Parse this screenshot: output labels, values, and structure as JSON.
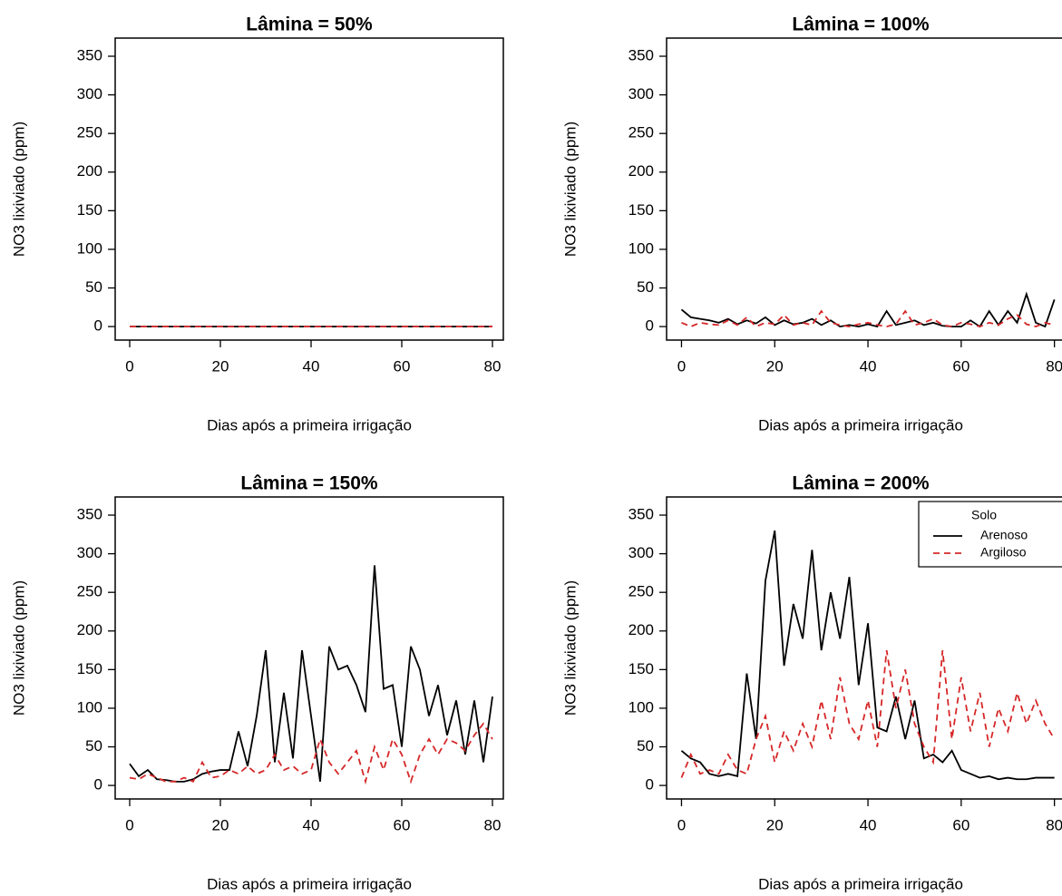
{
  "chart_data": [
    {
      "type": "line",
      "title": "Lâmina = 50%",
      "xlabel": "Dias após a primeira irrigação",
      "ylabel": "NO3 lixiviado (ppm)",
      "x": [
        0,
        2,
        4,
        6,
        8,
        10,
        12,
        14,
        16,
        18,
        20,
        22,
        24,
        26,
        28,
        30,
        32,
        34,
        36,
        38,
        40,
        42,
        44,
        46,
        48,
        50,
        52,
        54,
        56,
        58,
        60,
        62,
        64,
        66,
        68,
        70,
        72,
        74,
        76,
        78,
        80
      ],
      "xlim": [
        -3.2,
        82.4
      ],
      "xticks": [
        0,
        20,
        40,
        60,
        80
      ],
      "ylim": [
        -17.5,
        373.5
      ],
      "yticks": [
        0,
        50,
        100,
        150,
        200,
        250,
        300,
        350
      ],
      "series": [
        {
          "color": "#000000",
          "linestyle": "solid",
          "values": [
            0,
            0,
            0,
            0,
            0,
            0,
            0,
            0,
            0,
            0,
            0,
            0,
            0,
            0,
            0,
            0,
            0,
            0,
            0,
            0,
            0,
            0,
            0,
            0,
            0,
            0,
            0,
            0,
            0,
            0,
            0,
            0,
            0,
            0,
            0,
            0,
            0,
            0,
            0,
            0,
            0
          ]
        },
        {
          "color": "#d62728",
          "linestyle": "dashed",
          "values": [
            0,
            0,
            0,
            0,
            0,
            0,
            0,
            0,
            0,
            0,
            0,
            0,
            0,
            0,
            0,
            0,
            0,
            0,
            0,
            0,
            0,
            0,
            0,
            0,
            0,
            0,
            0,
            0,
            0,
            0,
            0,
            0,
            0,
            0,
            0,
            0,
            0,
            0,
            0,
            0,
            0
          ]
        }
      ]
    },
    {
      "type": "line",
      "title": "Lâmina = 100%",
      "xlabel": "Dias após a primeira irrigação",
      "ylabel": "NO3 lixiviado (ppm)",
      "x": [
        0,
        2,
        4,
        6,
        8,
        10,
        12,
        14,
        16,
        18,
        20,
        22,
        24,
        26,
        28,
        30,
        32,
        34,
        36,
        38,
        40,
        42,
        44,
        46,
        48,
        50,
        52,
        54,
        56,
        58,
        60,
        62,
        64,
        66,
        68,
        70,
        72,
        74,
        76,
        78,
        80
      ],
      "xlim": [
        -3.2,
        82.4
      ],
      "xticks": [
        0,
        20,
        40,
        60,
        80
      ],
      "ylim": [
        -17.5,
        373.5
      ],
      "yticks": [
        0,
        50,
        100,
        150,
        200,
        250,
        300,
        350
      ],
      "series": [
        {
          "color": "#000000",
          "linestyle": "solid",
          "values": [
            22,
            12,
            10,
            8,
            5,
            10,
            3,
            8,
            4,
            12,
            2,
            8,
            3,
            5,
            10,
            2,
            8,
            0,
            2,
            0,
            3,
            0,
            20,
            2,
            5,
            8,
            2,
            5,
            1,
            0,
            0,
            8,
            0,
            20,
            2,
            20,
            5,
            42,
            5,
            0,
            35
          ]
        },
        {
          "color": "#d62728",
          "linestyle": "dashed",
          "values": [
            5,
            0,
            5,
            3,
            2,
            8,
            2,
            12,
            0,
            5,
            3,
            15,
            2,
            5,
            2,
            20,
            5,
            2,
            0,
            3,
            5,
            2,
            0,
            3,
            20,
            2,
            5,
            10,
            2,
            0,
            5,
            3,
            0,
            5,
            2,
            10,
            15,
            3,
            0,
            5,
            2
          ]
        }
      ]
    },
    {
      "type": "line",
      "title": "Lâmina = 150%",
      "xlabel": "Dias após a primeira irrigação",
      "ylabel": "NO3 lixiviado (ppm)",
      "x": [
        0,
        2,
        4,
        6,
        8,
        10,
        12,
        14,
        16,
        18,
        20,
        22,
        24,
        26,
        28,
        30,
        32,
        34,
        36,
        38,
        40,
        42,
        44,
        46,
        48,
        50,
        52,
        54,
        56,
        58,
        60,
        62,
        64,
        66,
        68,
        70,
        72,
        74,
        76,
        78,
        80
      ],
      "xlim": [
        -3.2,
        82.4
      ],
      "xticks": [
        0,
        20,
        40,
        60,
        80
      ],
      "ylim": [
        -17.5,
        373.5
      ],
      "yticks": [
        0,
        50,
        100,
        150,
        200,
        250,
        300,
        350
      ],
      "series": [
        {
          "color": "#000000",
          "linestyle": "solid",
          "values": [
            28,
            12,
            20,
            8,
            7,
            5,
            5,
            8,
            15,
            18,
            20,
            20,
            70,
            25,
            90,
            175,
            30,
            120,
            35,
            175,
            90,
            5,
            180,
            150,
            155,
            130,
            95,
            285,
            125,
            130,
            50,
            180,
            150,
            90,
            130,
            65,
            110,
            40,
            110,
            30,
            115
          ]
        },
        {
          "color": "#d62728",
          "linestyle": "dashed",
          "values": [
            10,
            8,
            15,
            10,
            5,
            5,
            10,
            5,
            30,
            10,
            12,
            20,
            15,
            25,
            15,
            20,
            40,
            20,
            25,
            15,
            20,
            60,
            30,
            15,
            30,
            45,
            5,
            50,
            20,
            60,
            40,
            5,
            40,
            60,
            40,
            60,
            55,
            45,
            65,
            80,
            60
          ]
        }
      ]
    },
    {
      "type": "line",
      "title": "Lâmina = 200%",
      "xlabel": "Dias após a primeira irrigação",
      "ylabel": "NO3 lixiviado (ppm)",
      "x": [
        0,
        2,
        4,
        6,
        8,
        10,
        12,
        14,
        16,
        18,
        20,
        22,
        24,
        26,
        28,
        30,
        32,
        34,
        36,
        38,
        40,
        42,
        44,
        46,
        48,
        50,
        52,
        54,
        56,
        58,
        60,
        62,
        64,
        66,
        68,
        70,
        72,
        74,
        76,
        78,
        80
      ],
      "xlim": [
        -3.2,
        82.4
      ],
      "xticks": [
        0,
        20,
        40,
        60,
        80
      ],
      "ylim": [
        -17.5,
        373.5
      ],
      "yticks": [
        0,
        50,
        100,
        150,
        200,
        250,
        300,
        350
      ],
      "legend": {
        "title": "Solo",
        "position": "top-right"
      },
      "series": [
        {
          "name": "Arenoso",
          "color": "#000000",
          "linestyle": "solid",
          "values": [
            45,
            35,
            30,
            15,
            12,
            15,
            12,
            145,
            60,
            265,
            330,
            155,
            235,
            190,
            305,
            175,
            250,
            190,
            270,
            130,
            210,
            75,
            70,
            115,
            60,
            110,
            35,
            40,
            30,
            45,
            20,
            15,
            10,
            12,
            8,
            10,
            8,
            8,
            10,
            10,
            10
          ]
        },
        {
          "name": "Argiloso",
          "color": "#d62728",
          "linestyle": "dashed",
          "values": [
            10,
            40,
            15,
            20,
            15,
            40,
            20,
            15,
            60,
            90,
            30,
            70,
            45,
            80,
            50,
            110,
            60,
            140,
            80,
            60,
            110,
            50,
            175,
            100,
            150,
            80,
            50,
            30,
            175,
            60,
            140,
            70,
            120,
            50,
            100,
            70,
            120,
            80,
            110,
            80,
            60
          ]
        }
      ]
    }
  ]
}
